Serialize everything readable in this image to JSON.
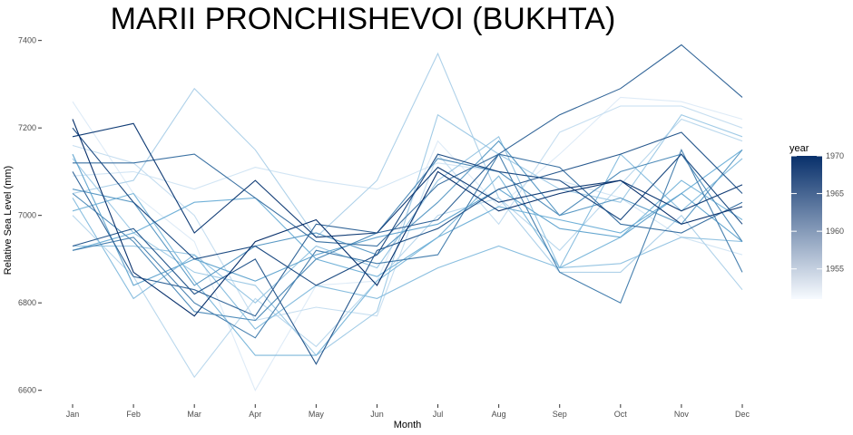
{
  "chart_data": {
    "type": "line",
    "title": "MARII PRONCHISHEVOI (BUKHTA)",
    "xlabel": "Month",
    "ylabel": "Relative Sea Level (mm)",
    "categories": [
      "Jan",
      "Feb",
      "Mar",
      "Apr",
      "May",
      "Jun",
      "Jul",
      "Aug",
      "Sep",
      "Oct",
      "Nov",
      "Dec"
    ],
    "ylim": [
      6560,
      7420
    ],
    "yticks": [
      6600,
      6800,
      7000,
      7200,
      7400
    ],
    "grid": false,
    "legend": {
      "title": "year",
      "position": "right",
      "ticks": [
        1955,
        1960,
        1965,
        1970
      ],
      "range": [
        1951,
        1970
      ],
      "color_low": "#f7fbff",
      "color_high": "#08306b"
    },
    "series": [
      {
        "year": 1951,
        "values": [
          7260,
          7050,
          6940,
          6600,
          6840,
          6850,
          7170,
          7020,
          7140,
          7270,
          7260,
          7220
        ]
      },
      {
        "year": 1952,
        "values": [
          7090,
          7100,
          7060,
          7110,
          7080,
          7060,
          7120,
          7100,
          7080,
          7040,
          6950,
          6910
        ]
      },
      {
        "year": 1953,
        "values": [
          7160,
          7120,
          7000,
          6760,
          6790,
          6770,
          7140,
          6980,
          7190,
          7250,
          7250,
          7200
        ]
      },
      {
        "year": 1954,
        "values": [
          7000,
          6860,
          6630,
          6810,
          6700,
          6850,
          7000,
          7040,
          6920,
          7070,
          7220,
          7170
        ]
      },
      {
        "year": 1955,
        "values": [
          7050,
          7080,
          7290,
          7150,
          6950,
          7080,
          7370,
          7040,
          6870,
          6870,
          7000,
          6830
        ]
      },
      {
        "year": 1956,
        "values": [
          7130,
          6960,
          6870,
          6840,
          6680,
          6780,
          7230,
          7140,
          7060,
          7030,
          7230,
          7180
        ]
      },
      {
        "year": 1957,
        "values": [
          6930,
          6930,
          6910,
          6800,
          6930,
          6880,
          7080,
          7180,
          6880,
          6890,
          6950,
          6940
        ]
      },
      {
        "year": 1958,
        "values": [
          7040,
          6810,
          6910,
          6740,
          6840,
          6810,
          6880,
          6930,
          6880,
          7140,
          7010,
          7130
        ]
      },
      {
        "year": 1959,
        "values": [
          7010,
          7050,
          6850,
          6680,
          6680,
          6850,
          6950,
          7090,
          6880,
          6950,
          7080,
          6990
        ]
      },
      {
        "year": 1960,
        "values": [
          6920,
          6960,
          7030,
          7040,
          6900,
          6860,
          6950,
          7020,
          6990,
          6960,
          7050,
          7150
        ]
      },
      {
        "year": 1961,
        "values": [
          7140,
          6840,
          6900,
          6850,
          6910,
          6950,
          6980,
          7060,
          6970,
          6950,
          7050,
          6940
        ]
      },
      {
        "year": 1962,
        "values": [
          7060,
          7030,
          6840,
          6930,
          6960,
          6910,
          7030,
          7170,
          7000,
          7040,
          6980,
          7150
        ]
      },
      {
        "year": 1963,
        "values": [
          7050,
          6940,
          6780,
          6760,
          6900,
          6960,
          7130,
          7100,
          7000,
          7100,
          7140,
          6940
        ]
      },
      {
        "year": 1964,
        "values": [
          6920,
          6950,
          6800,
          6720,
          6920,
          6890,
          6910,
          7140,
          6870,
          6800,
          7150,
          6870
        ]
      },
      {
        "year": 1965,
        "values": [
          7120,
          7120,
          7140,
          7040,
          6940,
          6930,
          7070,
          7140,
          7110,
          6980,
          6960,
          7030
        ]
      },
      {
        "year": 1966,
        "values": [
          7100,
          6860,
          6830,
          6770,
          6980,
          6960,
          6990,
          7140,
          7230,
          7290,
          7390,
          7270
        ]
      },
      {
        "year": 1967,
        "values": [
          6930,
          6970,
          6820,
          6900,
          6660,
          6920,
          6970,
          7060,
          7100,
          7140,
          7190,
          7050
        ]
      },
      {
        "year": 1968,
        "values": [
          7200,
          7030,
          6900,
          6930,
          6840,
          6910,
          7140,
          7100,
          7080,
          6990,
          7140,
          6980
        ]
      },
      {
        "year": 1969,
        "values": [
          7180,
          7210,
          6960,
          7080,
          6950,
          6960,
          7110,
          7030,
          7060,
          7080,
          7010,
          7070
        ]
      },
      {
        "year": 1970,
        "values": [
          7220,
          6870,
          6770,
          6940,
          6990,
          6840,
          7100,
          7010,
          7050,
          7080,
          6980,
          7020
        ]
      }
    ]
  }
}
